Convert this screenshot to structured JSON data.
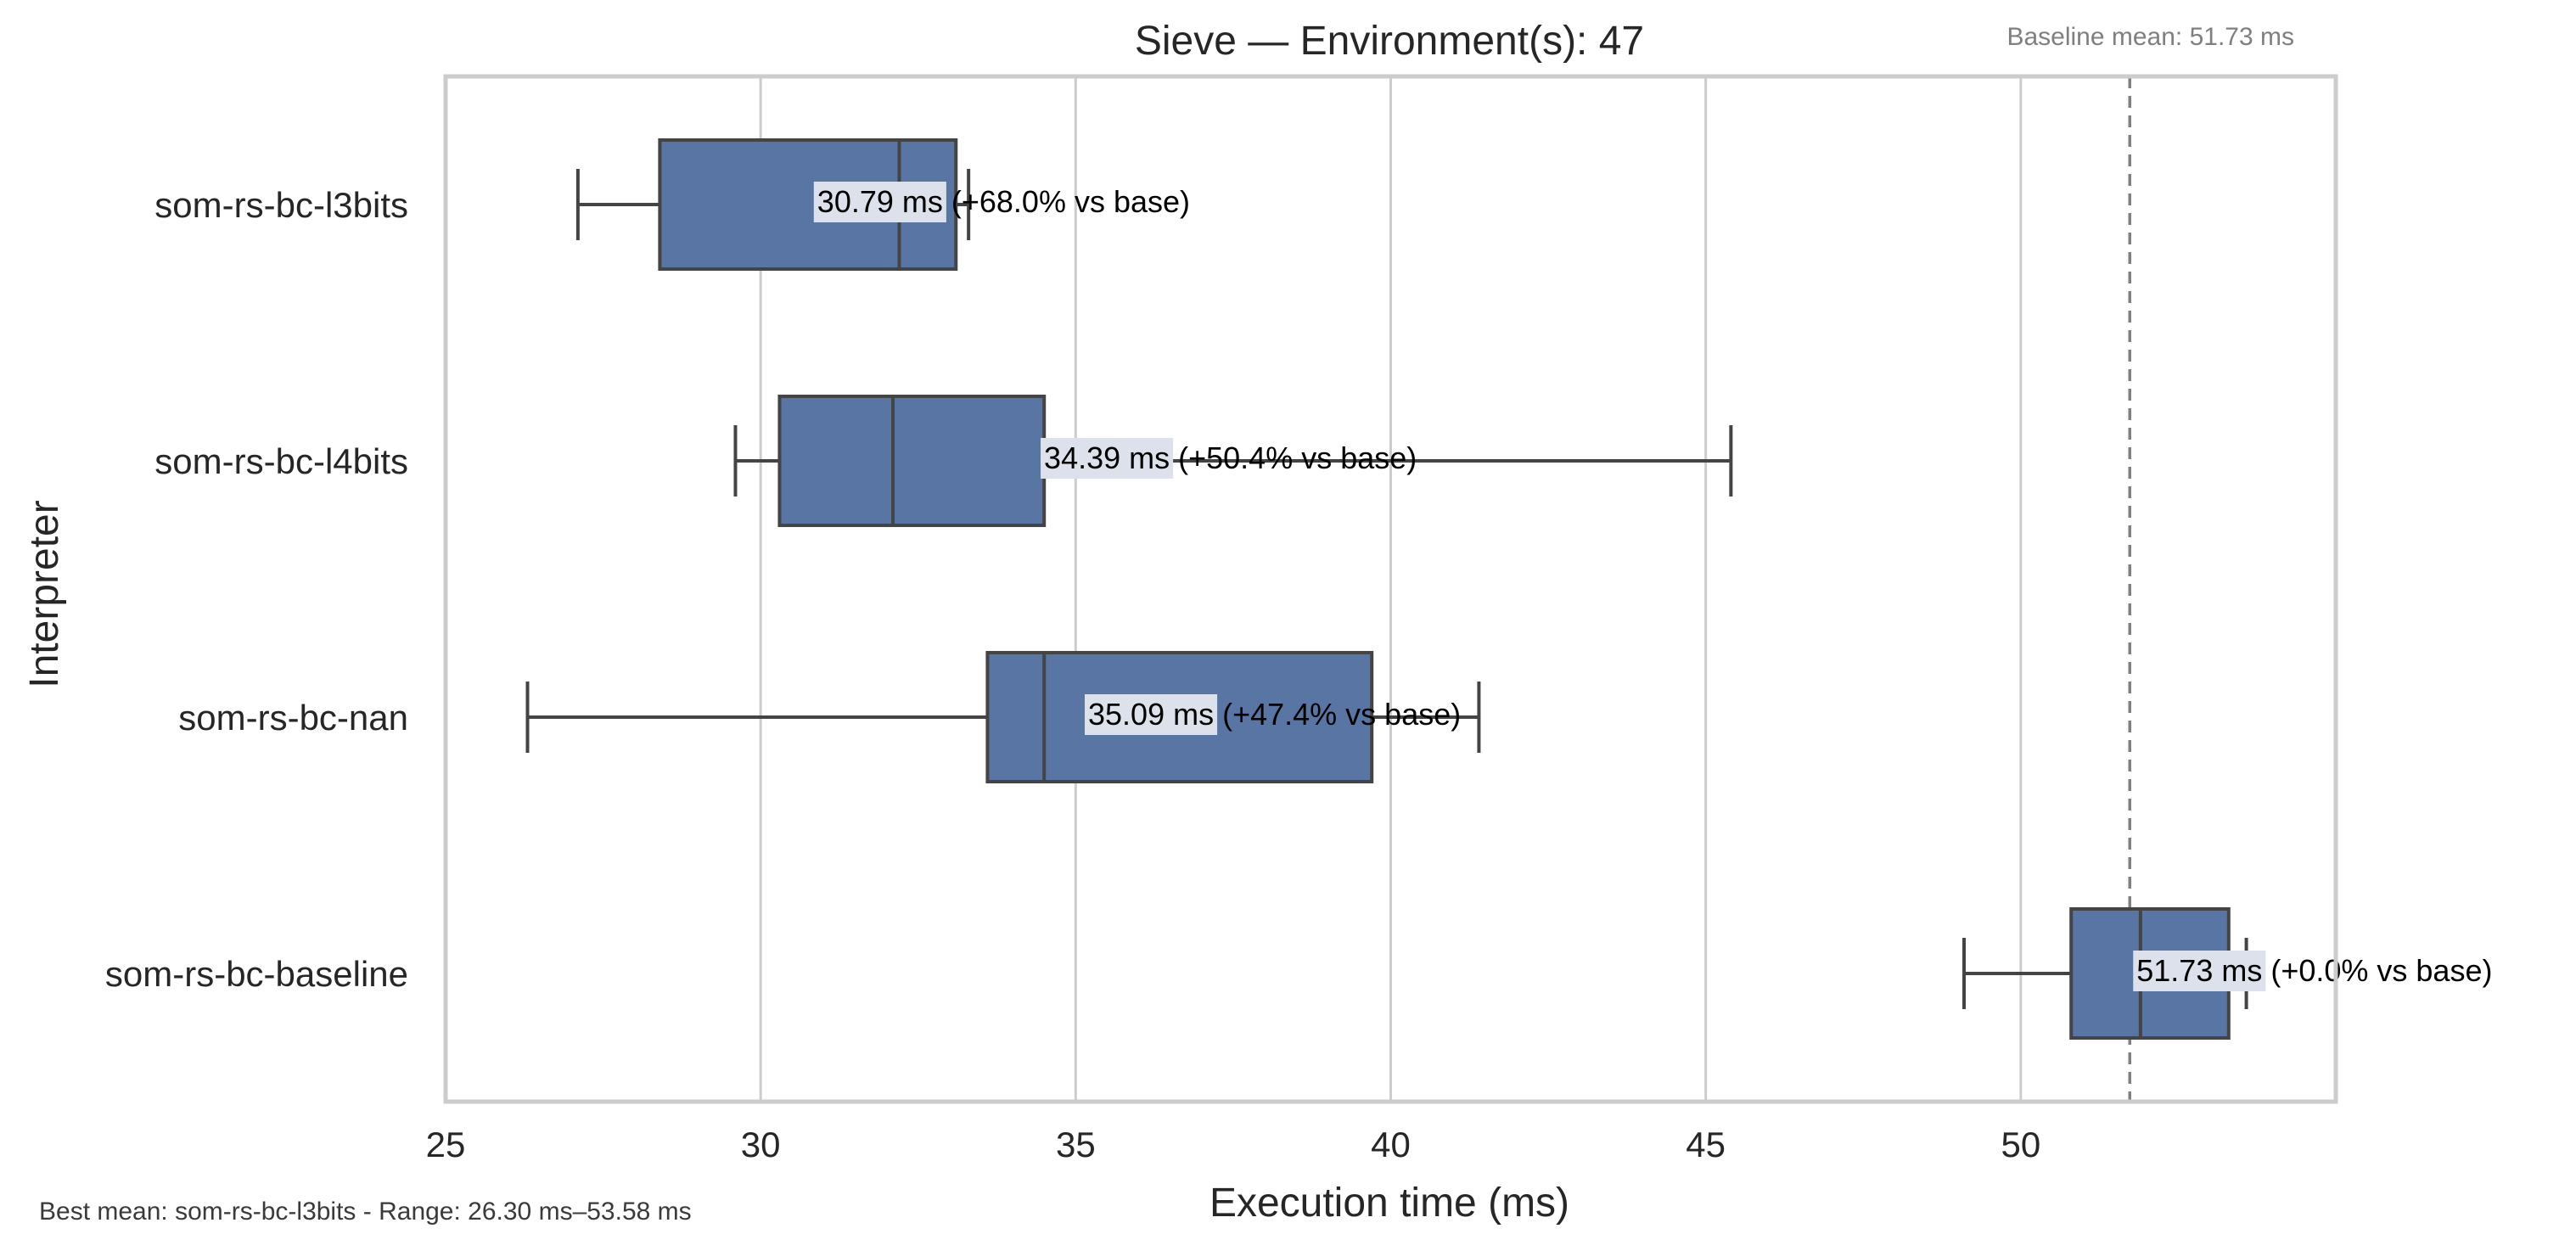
{
  "chart_data": {
    "type": "boxplot",
    "orientation": "horizontal",
    "title": "Sieve — Environment(s): 47",
    "baseline_note": "Baseline mean: 51.73 ms",
    "footer_note": "Best mean: som-rs-bc-l3bits - Range: 26.30 ms–53.58 ms",
    "xlabel": "Execution time (ms)",
    "ylabel": "Interpreter",
    "xlim": [
      25,
      55
    ],
    "xticks": [
      25,
      30,
      35,
      40,
      45,
      50
    ],
    "grid": "vertical",
    "baseline_mean": 51.73,
    "box_color": "#5875a4",
    "box_edge_color": "#444444",
    "baseline_line_color": "#808080",
    "label_bg_color": "#dde1eb",
    "categories": [
      "som-rs-bc-l3bits",
      "som-rs-bc-l4bits",
      "som-rs-bc-nan",
      "som-rs-bc-baseline"
    ],
    "boxes": [
      {
        "name": "som-rs-bc-l3bits",
        "whisker_low": 27.1,
        "q1": 28.4,
        "median": 32.2,
        "q3": 33.1,
        "whisker_high": 33.3,
        "mean": 30.79,
        "label": "30.79 ms  (+68.0% vs base)"
      },
      {
        "name": "som-rs-bc-l4bits",
        "whisker_low": 29.6,
        "q1": 30.3,
        "median": 32.1,
        "q3": 34.5,
        "whisker_high": 45.4,
        "mean": 34.39,
        "label": "34.39 ms  (+50.4% vs base)"
      },
      {
        "name": "som-rs-bc-nan",
        "whisker_low": 26.3,
        "q1": 33.6,
        "median": 34.5,
        "q3": 39.7,
        "whisker_high": 41.4,
        "mean": 35.09,
        "label": "35.09 ms  (+47.4% vs base)"
      },
      {
        "name": "som-rs-bc-baseline",
        "whisker_low": 49.1,
        "q1": 50.8,
        "median": 51.9,
        "q3": 53.3,
        "whisker_high": 53.58,
        "mean": 51.73,
        "label": "51.73 ms  (+0.0% vs base)"
      }
    ]
  }
}
